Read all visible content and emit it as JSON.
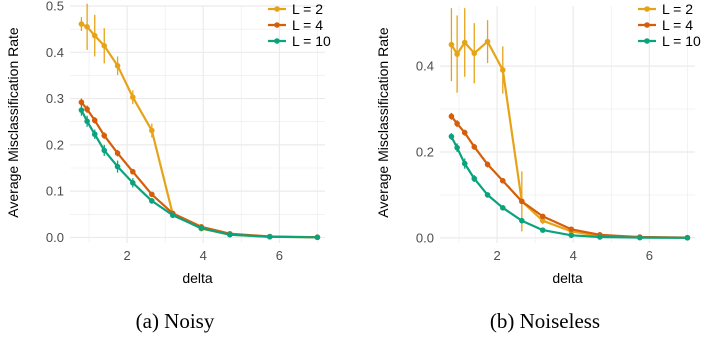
{
  "captions": [
    "(a) Noisy",
    "(b) Noiseless"
  ],
  "legend_title": "",
  "colors": {
    "L = 2": "#E6A317",
    "L = 4": "#D55E0B",
    "L = 10": "#0BA37E",
    "grid": "#EBEBEB",
    "axis_text": "#4D4D4D"
  },
  "chart_data": [
    {
      "type": "line",
      "title": "",
      "subtitle_caption": "(a) Noisy",
      "xlabel": "delta",
      "ylabel": "Average Misclassification Rate",
      "xlim": [
        0.5,
        7.2
      ],
      "ylim": [
        -0.012,
        0.5
      ],
      "xticks": [
        2,
        4,
        6
      ],
      "yticks": [
        0.0,
        0.1,
        0.2,
        0.3,
        0.4,
        0.5
      ],
      "ytick_labels": [
        "0.0",
        "0.1",
        "0.2",
        "0.3",
        "0.4",
        "0.5"
      ],
      "grid": true,
      "legend": "top-right",
      "series": [
        {
          "name": "L = 2",
          "x": [
            0.8,
            0.95,
            1.15,
            1.4,
            1.75,
            2.15,
            2.65,
            3.2,
            3.95,
            4.7,
            5.75,
            7.0
          ],
          "y": [
            0.461,
            0.455,
            0.436,
            0.414,
            0.371,
            0.303,
            0.231,
            0.05,
            0.019,
            0.006,
            0.0015,
            0.0003
          ],
          "err": [
            0.015,
            0.05,
            0.045,
            0.038,
            0.02,
            0.015,
            0.015,
            0.004,
            0.002,
            0.001,
            0.001,
            0.0005
          ]
        },
        {
          "name": "L = 4",
          "x": [
            0.8,
            0.95,
            1.15,
            1.4,
            1.75,
            2.15,
            2.65,
            3.2,
            3.95,
            4.7,
            5.75,
            7.0
          ],
          "y": [
            0.292,
            0.277,
            0.253,
            0.22,
            0.182,
            0.142,
            0.093,
            0.052,
            0.023,
            0.008,
            0.002,
            0.0005
          ],
          "err": [
            0.008,
            0.008,
            0.007,
            0.007,
            0.007,
            0.006,
            0.005,
            0.004,
            0.002,
            0.001,
            0.001,
            0.0005
          ]
        },
        {
          "name": "L = 10",
          "x": [
            0.8,
            0.95,
            1.15,
            1.4,
            1.75,
            2.15,
            2.65,
            3.2,
            3.95,
            4.7,
            5.75,
            7.0
          ],
          "y": [
            0.275,
            0.251,
            0.223,
            0.188,
            0.153,
            0.118,
            0.079,
            0.048,
            0.02,
            0.006,
            0.0015,
            0.0003
          ],
          "err": [
            0.012,
            0.012,
            0.01,
            0.012,
            0.013,
            0.01,
            0.006,
            0.006,
            0.003,
            0.001,
            0.001,
            0.0005
          ]
        }
      ]
    },
    {
      "type": "line",
      "title": "",
      "subtitle_caption": "(b) Noiseless",
      "xlabel": "delta",
      "ylabel": "Average Misclassification Rate",
      "xlim": [
        0.5,
        7.2
      ],
      "ylim": [
        -0.012,
        0.54
      ],
      "xticks": [
        2,
        4,
        6
      ],
      "yticks": [
        0.0,
        0.2,
        0.4
      ],
      "ytick_labels": [
        "0.0",
        "0.2",
        "0.4"
      ],
      "grid": true,
      "legend": "top-right",
      "series": [
        {
          "name": "L = 2",
          "x": [
            0.8,
            0.95,
            1.15,
            1.4,
            1.75,
            2.15,
            2.65,
            3.2,
            3.95,
            4.7,
            5.75,
            7.0
          ],
          "y": [
            0.45,
            0.428,
            0.455,
            0.43,
            0.457,
            0.391,
            0.085,
            0.04,
            0.015,
            0.004,
            0.001,
            0.0003
          ],
          "err": [
            0.085,
            0.09,
            0.08,
            0.07,
            0.05,
            0.055,
            0.07,
            0.008,
            0.003,
            0.001,
            0.001,
            0.0005
          ]
        },
        {
          "name": "L = 4",
          "x": [
            0.8,
            0.95,
            1.15,
            1.4,
            1.75,
            2.15,
            2.65,
            3.2,
            3.95,
            4.7,
            5.75,
            7.0
          ],
          "y": [
            0.283,
            0.266,
            0.245,
            0.212,
            0.171,
            0.133,
            0.085,
            0.05,
            0.02,
            0.007,
            0.002,
            0.0005
          ],
          "err": [
            0.008,
            0.008,
            0.007,
            0.007,
            0.007,
            0.006,
            0.005,
            0.004,
            0.002,
            0.001,
            0.001,
            0.0005
          ]
        },
        {
          "name": "L = 10",
          "x": [
            0.8,
            0.95,
            1.15,
            1.4,
            1.75,
            2.15,
            2.65,
            3.2,
            3.95,
            4.7,
            5.75,
            7.0
          ],
          "y": [
            0.236,
            0.21,
            0.173,
            0.138,
            0.1,
            0.07,
            0.04,
            0.018,
            0.006,
            0.002,
            0.0005,
            0.0002
          ],
          "err": [
            0.008,
            0.01,
            0.012,
            0.008,
            0.006,
            0.005,
            0.004,
            0.002,
            0.001,
            0.0005,
            0.0005,
            0.0002
          ]
        }
      ]
    }
  ]
}
